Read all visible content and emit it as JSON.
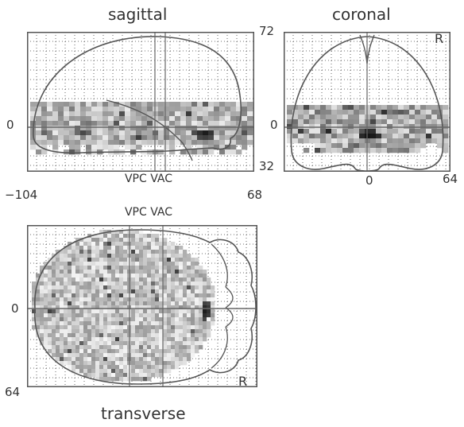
{
  "titles": {
    "sagittal": "sagittal",
    "coronal": "coronal",
    "transverse": "transverse"
  },
  "labels": {
    "sag_zero": "0",
    "sag_xmin": "−104",
    "sag_xmax": "68",
    "sag_vpc_vac": "VPC VAC",
    "cor_top": "72",
    "cor_zero": "0",
    "cor_bottom": "32",
    "cor_x_zero": "0",
    "cor_xmax": "64",
    "cor_r": "R",
    "tra_vpc_vac": "VPC VAC",
    "tra_zero": "0",
    "tra_bottom": "64",
    "tra_r": "R"
  },
  "colors": {
    "frame": "#555555",
    "grid_dots": "#444444",
    "outline": "#555555",
    "background": "#ffffff"
  }
}
